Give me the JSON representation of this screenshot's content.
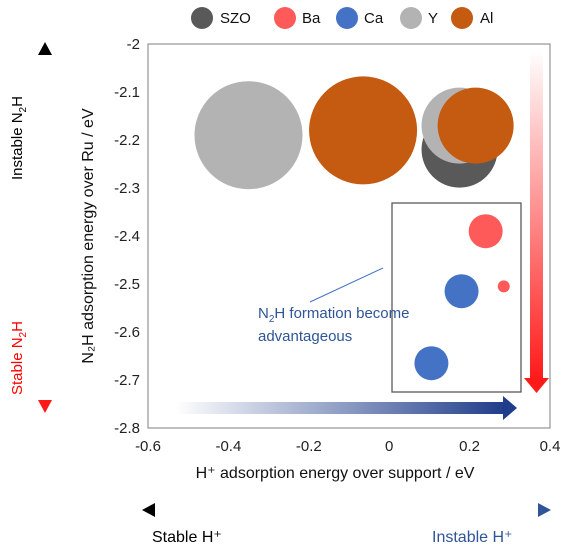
{
  "chart_data": {
    "type": "scatter",
    "xlabel": "H⁺ adsorption energy over support / eV",
    "ylabel": "N₂H adsorption energy over Ru / eV",
    "xlim": [
      -0.6,
      0.4
    ],
    "ylim": [
      -2.8,
      -2.0
    ],
    "xticks": [
      "-0.6",
      "-0.4",
      "-0.2",
      "0",
      "0.2",
      "0.4"
    ],
    "yticks": [
      "-2",
      "-2.1",
      "-2.2",
      "-2.3",
      "-2.4",
      "-2.5",
      "-2.6",
      "-2.7",
      "-2.8"
    ],
    "grid": false,
    "legend_position": "top",
    "legend": [
      {
        "label": "SZO",
        "color": "#595959"
      },
      {
        "label": "Ba",
        "color": "#ff5a5a"
      },
      {
        "label": "Ca",
        "color": "#4472c4"
      },
      {
        "label": "Y",
        "color": "#b3b3b3"
      },
      {
        "label": "Al",
        "color": "#c55a11"
      }
    ],
    "points": [
      {
        "series": "Y",
        "x": -0.35,
        "y": -2.19,
        "size": "large"
      },
      {
        "series": "Al",
        "x": -0.065,
        "y": -2.18,
        "size": "large"
      },
      {
        "series": "SZO",
        "x": 0.175,
        "y": -2.22,
        "size": "medium"
      },
      {
        "series": "Y",
        "x": 0.175,
        "y": -2.17,
        "size": "medium"
      },
      {
        "series": "Al",
        "x": 0.215,
        "y": -2.17,
        "size": "medium"
      },
      {
        "series": "Ba",
        "x": 0.24,
        "y": -2.39,
        "size": "small"
      },
      {
        "series": "Ba",
        "x": 0.285,
        "y": -2.505,
        "size": "tiny"
      },
      {
        "series": "Ca",
        "x": 0.18,
        "y": -2.515,
        "size": "small"
      },
      {
        "series": "Ca",
        "x": 0.105,
        "y": -2.665,
        "size": "small"
      }
    ],
    "annotation": {
      "line1_pre": "N",
      "line1_sub": "2",
      "line1_post": "H formation become",
      "line2": "advantageous"
    }
  },
  "side_labels": {
    "top_left_pre": "Instable N",
    "top_left_sub": "2",
    "top_left_post": "H",
    "bottom_left_pre": "Stable N",
    "bottom_left_sub": "2",
    "bottom_left_post": "H",
    "bottom_left_color": "#ff0000",
    "bottom_stable": "Stable H⁺",
    "bottom_instable": "Instable H⁺",
    "bottom_instable_color": "#2f5597"
  }
}
